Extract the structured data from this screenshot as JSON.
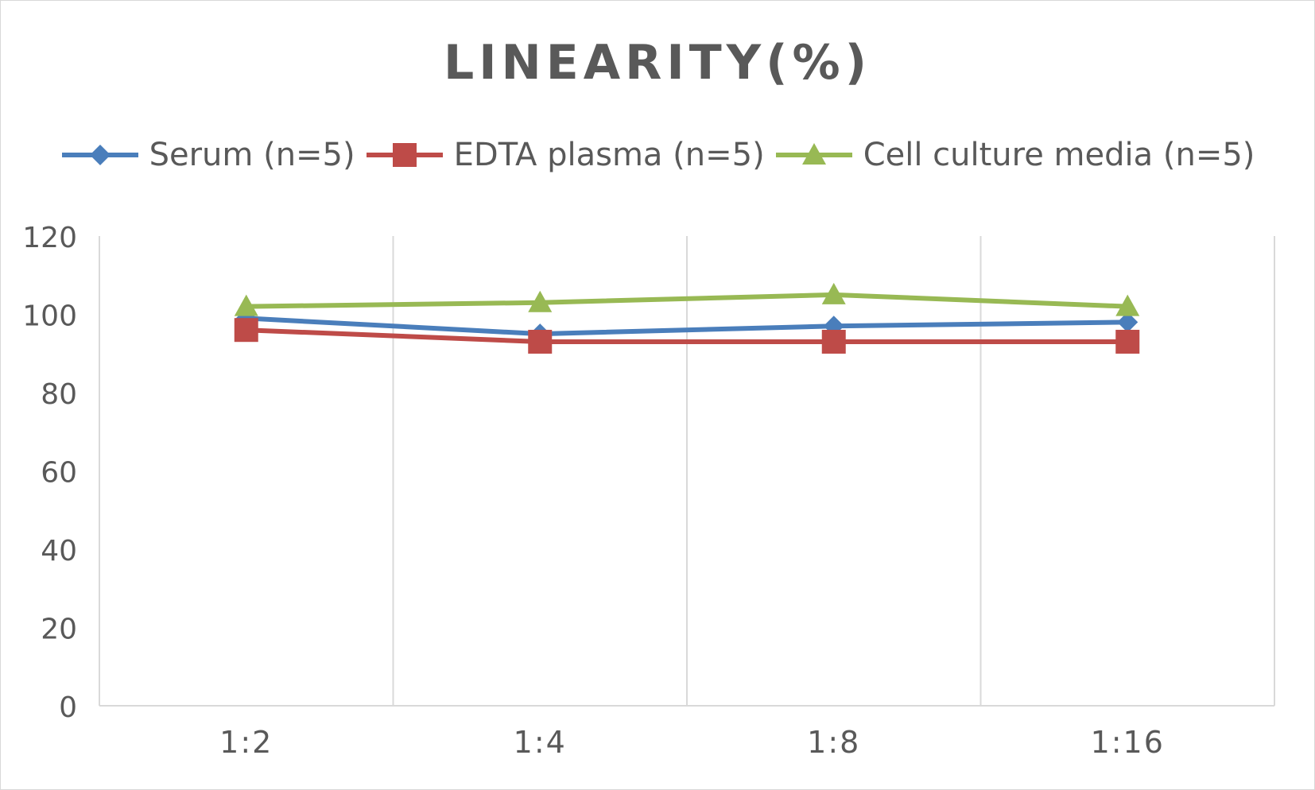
{
  "chart_data": {
    "type": "line",
    "title": "LINEARITY(%)",
    "xlabel": "",
    "ylabel": "",
    "categories": [
      "1:2",
      "1:4",
      "1:8",
      "1:16"
    ],
    "ylim": [
      0,
      120
    ],
    "yticks": [
      0,
      20,
      40,
      60,
      80,
      100,
      120
    ],
    "grid": "vertical",
    "legend": "top",
    "series": [
      {
        "name": "Serum (n=5)",
        "values": [
          99,
          95,
          97,
          98
        ],
        "color": "#4a7ebb",
        "marker": "diamond"
      },
      {
        "name": "EDTA plasma (n=5)",
        "values": [
          96,
          93,
          93,
          93
        ],
        "color": "#be4b48",
        "marker": "square"
      },
      {
        "name": "Cell culture media (n=5)",
        "values": [
          102,
          103,
          105,
          102
        ],
        "color": "#98b954",
        "marker": "triangle"
      }
    ]
  }
}
